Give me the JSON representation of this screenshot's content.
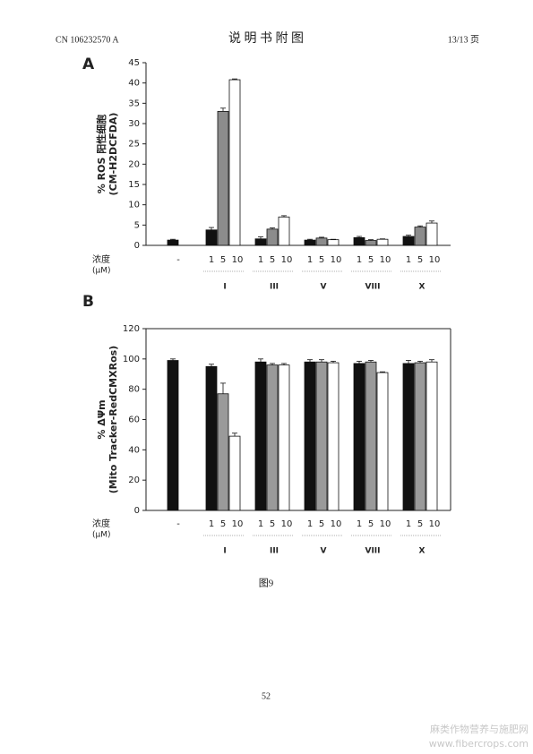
{
  "header": {
    "left": "CN 106232570 A",
    "center": "说 明 书 附 图",
    "right": "13/13 页"
  },
  "chart_data": [
    {
      "type": "bar",
      "panel": "A",
      "ylabel": [
        "% ROS 阳性细胞",
        "(CM-H2DCFDA)"
      ],
      "xlabel": [
        "浓度",
        "(μM)"
      ],
      "ylim": [
        0,
        45
      ],
      "yticks": [
        0,
        5,
        10,
        15,
        20,
        25,
        30,
        35,
        40,
        45
      ],
      "frame": false,
      "control": {
        "label": "-",
        "value": 1.3,
        "error": 0.2,
        "color": "#111111"
      },
      "dose_colors": [
        "#111111",
        "#8c8c8c",
        "#ffffff"
      ],
      "groups": [
        {
          "name": "I",
          "doses": [
            1,
            5,
            10
          ],
          "values": [
            3.8,
            33,
            40.8
          ],
          "errors": [
            0.6,
            0.8,
            0.2
          ]
        },
        {
          "name": "III",
          "doses": [
            1,
            5,
            10
          ],
          "values": [
            1.6,
            4.0,
            7.0
          ],
          "errors": [
            0.5,
            0.3,
            0.3
          ]
        },
        {
          "name": "V",
          "doses": [
            1,
            5,
            10
          ],
          "values": [
            1.3,
            1.8,
            1.4
          ],
          "errors": [
            0.2,
            0.2,
            0.1
          ]
        },
        {
          "name": "VIII",
          "doses": [
            1,
            5,
            10
          ],
          "values": [
            1.9,
            1.2,
            1.5
          ],
          "errors": [
            0.3,
            0.2,
            0.1
          ]
        },
        {
          "name": "X",
          "doses": [
            1,
            5,
            10
          ],
          "values": [
            2.2,
            4.5,
            5.5
          ],
          "errors": [
            0.3,
            0.3,
            0.5
          ]
        }
      ]
    },
    {
      "type": "bar",
      "panel": "B",
      "ylabel": [
        "% ΔΨm",
        "(Mito Tracker-RedCMXRos)"
      ],
      "xlabel": [
        "浓度",
        "(μM)"
      ],
      "ylim": [
        0,
        120
      ],
      "yticks": [
        0,
        20,
        40,
        60,
        80,
        100,
        120
      ],
      "frame": true,
      "control": {
        "label": "-",
        "value": 99,
        "error": 1,
        "color": "#111111"
      },
      "dose_colors": [
        "#111111",
        "#9a9a9a",
        "#ffffff"
      ],
      "groups": [
        {
          "name": "I",
          "doses": [
            1,
            5,
            10
          ],
          "values": [
            95,
            77,
            49
          ],
          "errors": [
            1.5,
            7,
            2
          ]
        },
        {
          "name": "III",
          "doses": [
            1,
            5,
            10
          ],
          "values": [
            98,
            96,
            96
          ],
          "errors": [
            2,
            1,
            1
          ]
        },
        {
          "name": "V",
          "doses": [
            1,
            5,
            10
          ],
          "values": [
            98,
            98,
            97.5
          ],
          "errors": [
            1.5,
            1.5,
            1
          ]
        },
        {
          "name": "VIII",
          "doses": [
            1,
            5,
            10
          ],
          "values": [
            97,
            98,
            91
          ],
          "errors": [
            1.5,
            1,
            0.5
          ]
        },
        {
          "name": "X",
          "doses": [
            1,
            5,
            10
          ],
          "values": [
            97,
            97.5,
            98
          ],
          "errors": [
            2,
            1,
            1.5
          ]
        }
      ]
    }
  ],
  "caption": "图9",
  "page_number": "52",
  "watermark": [
    "麻类作物营养与施肥网",
    "www.fibercrops.com"
  ]
}
